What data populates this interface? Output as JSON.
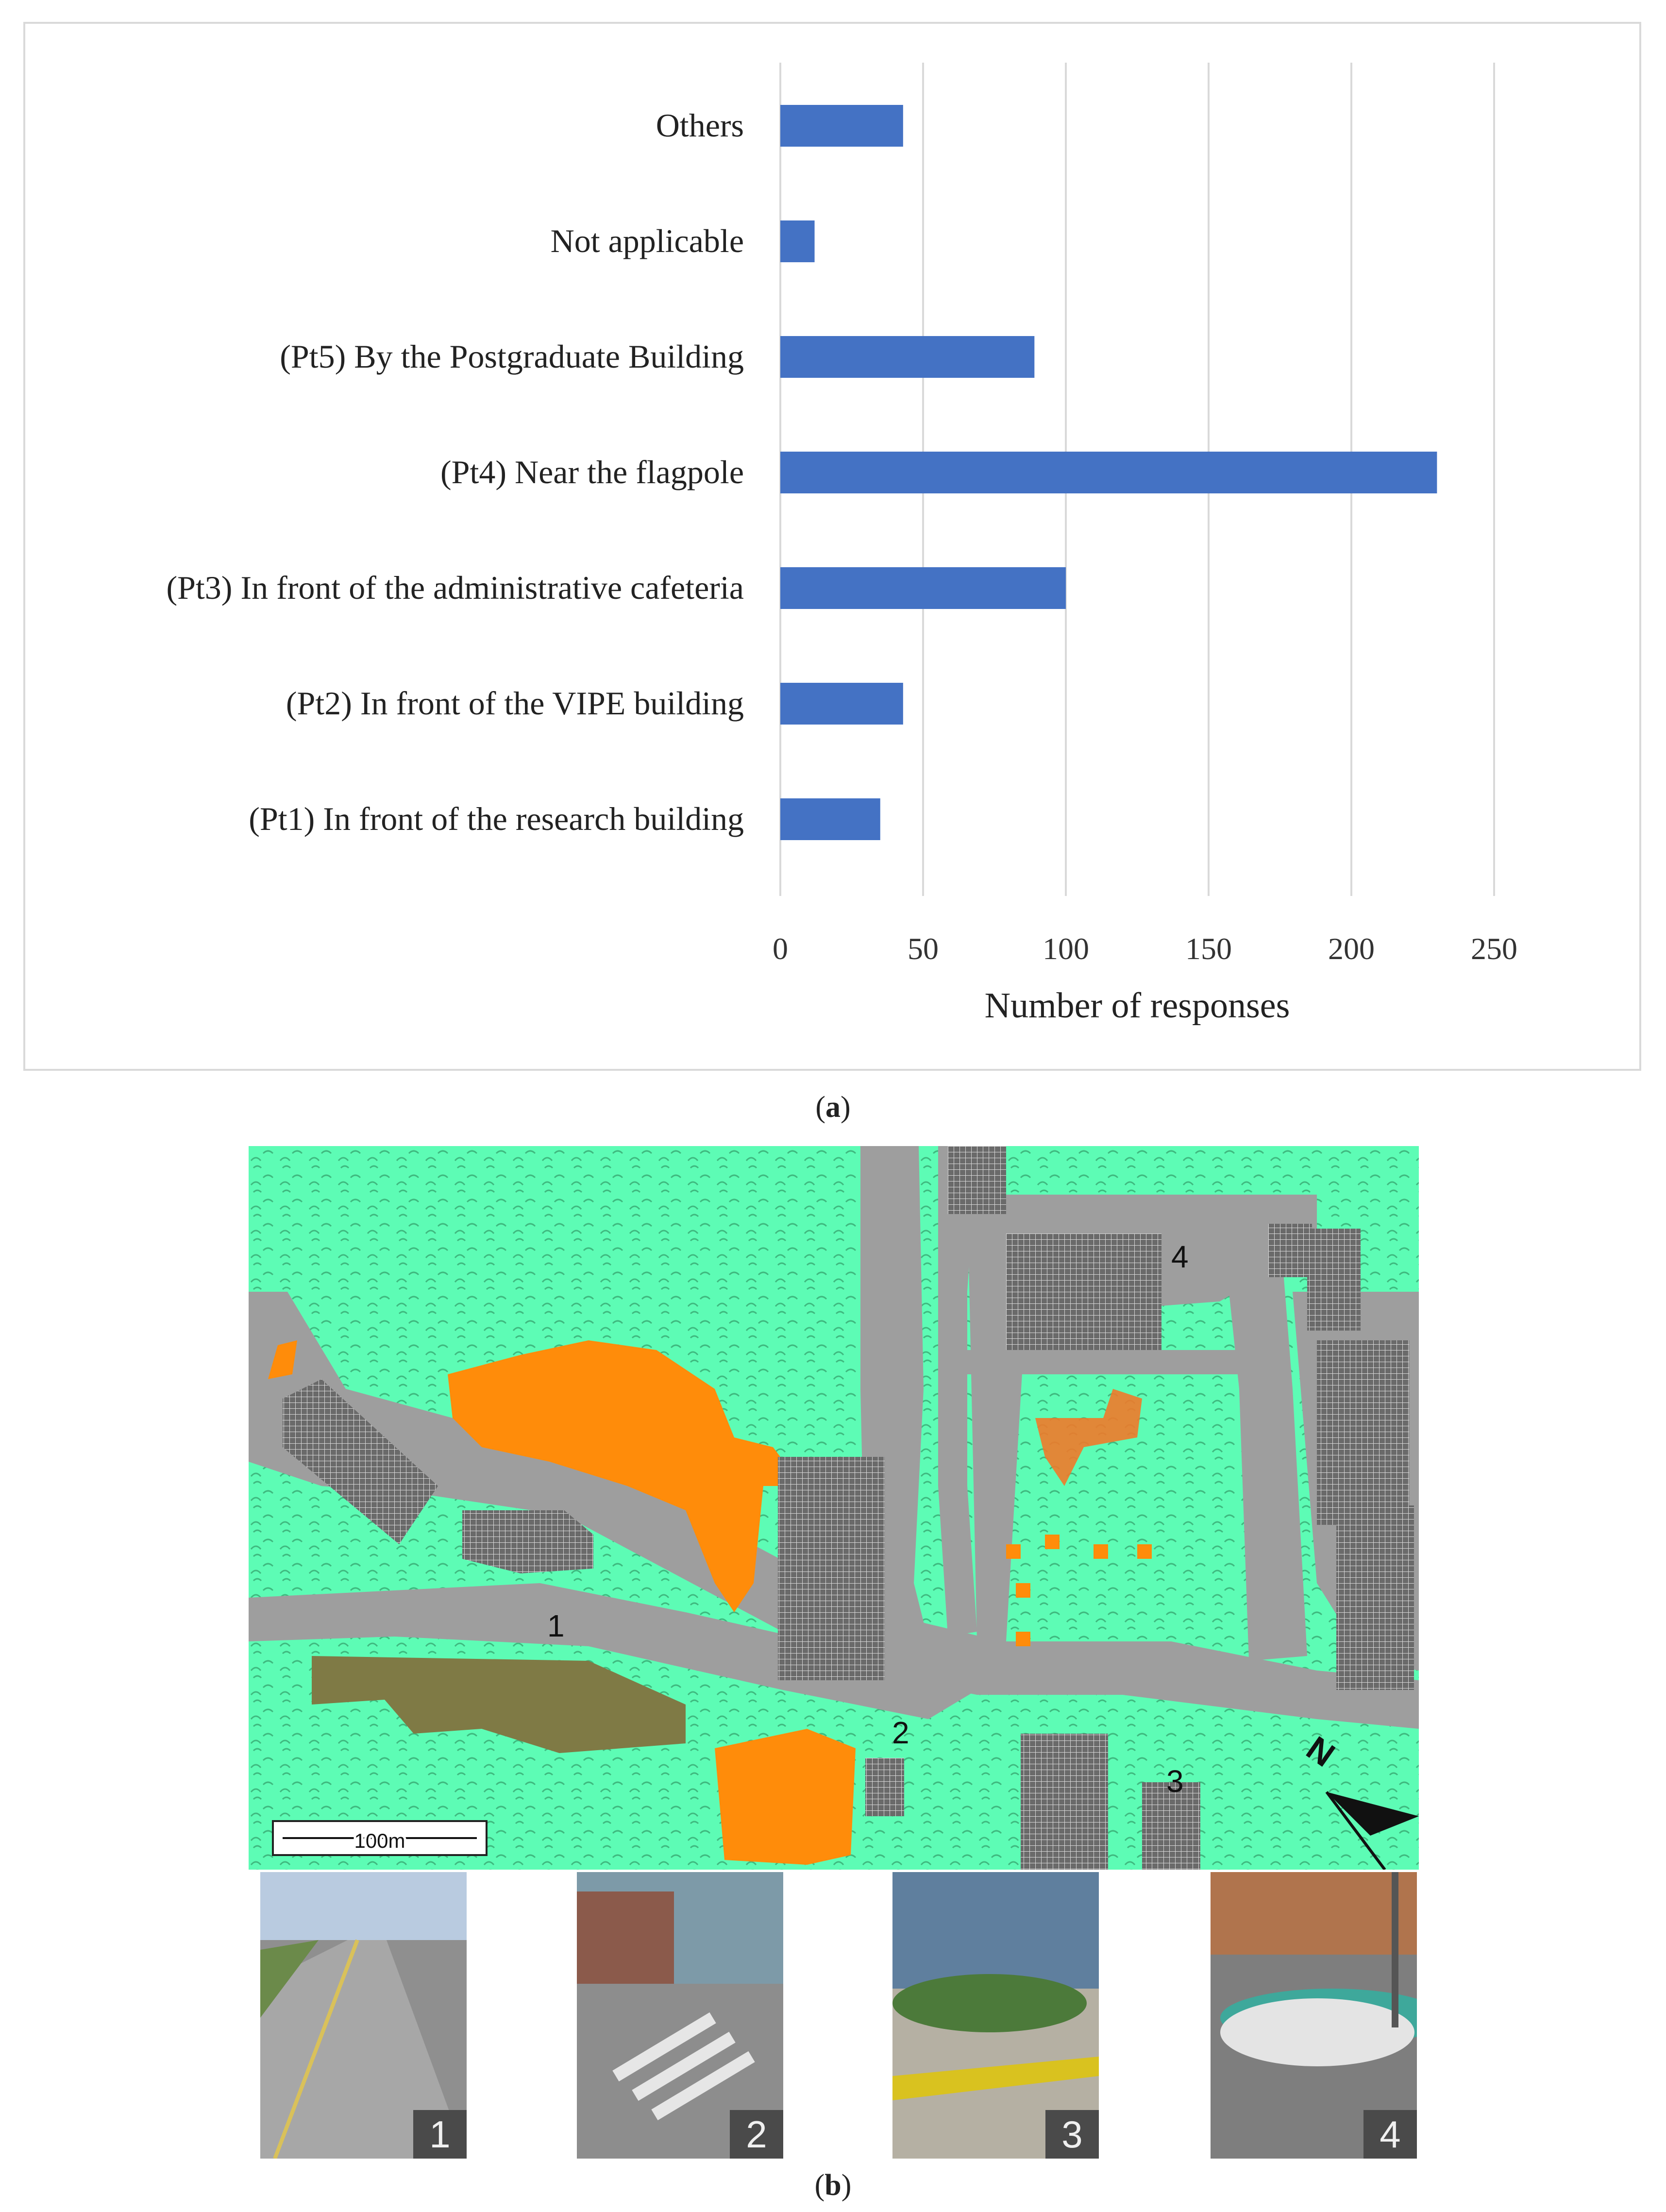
{
  "chart_data": {
    "type": "bar",
    "orientation": "horizontal",
    "categories": [
      "(Pt1) In front of the research building",
      "(Pt2) In front of the VIPE building",
      "(Pt3) In front of the administrative cafeteria",
      "(Pt4) Near the flagpole",
      "(Pt5) By the Postgraduate Building",
      "Not applicable",
      "Others"
    ],
    "values": [
      35,
      43,
      100,
      230,
      89,
      12,
      43
    ],
    "xlabel": "Number of responses",
    "xlim": [
      0,
      250
    ],
    "xticks": [
      0,
      50,
      100,
      150,
      200,
      250
    ],
    "grid": true,
    "bar_color": "#4472c4"
  },
  "caption_a": {
    "open": "(",
    "letter": "a",
    "close": ")"
  },
  "caption_b": {
    "open": "(",
    "letter": "b",
    "close": ")"
  },
  "map": {
    "point_labels": [
      "1",
      "2",
      "3",
      "4"
    ],
    "scale_label": "100m",
    "north_label": "N",
    "colors": {
      "vegetation": "#5dfcb5",
      "road": "#9e9e9e",
      "highlight": "#ff8c0a",
      "building": "#555555",
      "soil": "#7f7a45"
    }
  },
  "photos": [
    {
      "number": "1"
    },
    {
      "number": "2"
    },
    {
      "number": "3"
    },
    {
      "number": "4"
    }
  ]
}
